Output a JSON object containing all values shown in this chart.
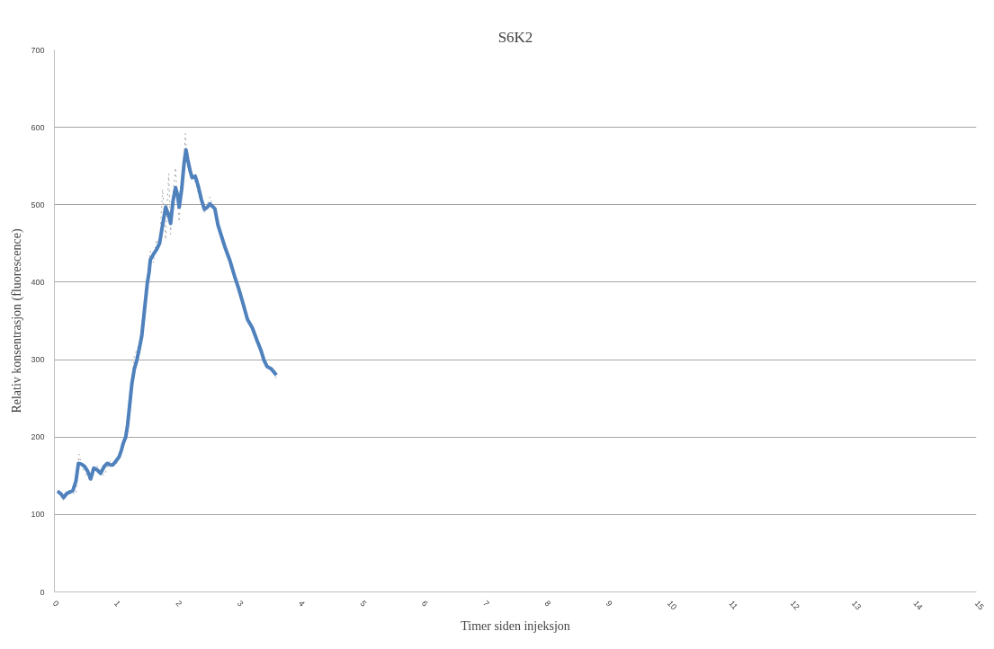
{
  "chart_data": {
    "type": "line",
    "title": "S6K2",
    "xlabel": "Timer siden injeksjon",
    "ylabel": "Relativ konsentrasjon (fluorescence)",
    "xlim": [
      0,
      15
    ],
    "xticks": [
      0,
      1,
      2,
      3,
      4,
      5,
      6,
      7,
      8,
      9,
      10,
      11,
      12,
      13,
      14,
      15
    ],
    "ylim": [
      0,
      700
    ],
    "yticks": [
      0,
      100,
      200,
      300,
      400,
      500,
      600,
      700
    ],
    "grid": "y",
    "series": [
      {
        "color": "#a6a6a6",
        "line_style": "dotted",
        "x": [
          0.05,
          0.15,
          0.25,
          0.35,
          0.4,
          0.45,
          0.59,
          0.69,
          0.81,
          0.91,
          1.0,
          1.12,
          1.22,
          1.3,
          1.38,
          1.5,
          1.56,
          1.61,
          1.66,
          1.71,
          1.76,
          1.81,
          1.86,
          1.89,
          1.93,
          1.97,
          2.0,
          2.03,
          2.07,
          2.11,
          2.13,
          2.17,
          2.21,
          2.29,
          2.34,
          2.44,
          2.53,
          2.61,
          2.72,
          2.85,
          3.0,
          3.14,
          3.29,
          3.41,
          3.53,
          3.61
        ],
        "values": [
          132,
          118,
          130,
          126,
          178,
          160,
          142,
          163,
          150,
          170,
          164,
          190,
          240,
          305,
          320,
          390,
          440,
          425,
          455,
          447,
          520,
          455,
          540,
          462,
          515,
          548,
          505,
          478,
          535,
          560,
          592,
          545,
          548,
          530,
          515,
          490,
          510,
          490,
          452,
          428,
          390,
          352,
          326,
          298,
          290,
          276
        ]
      },
      {
        "color": "#4f81bd",
        "line_style": "solid",
        "x": [
          0.05,
          0.1,
          0.15,
          0.2,
          0.25,
          0.3,
          0.35,
          0.39,
          0.44,
          0.49,
          0.54,
          0.59,
          0.64,
          0.69,
          0.75,
          0.81,
          0.86,
          0.91,
          0.95,
          1.0,
          1.05,
          1.09,
          1.12,
          1.16,
          1.19,
          1.22,
          1.26,
          1.3,
          1.34,
          1.38,
          1.42,
          1.51,
          1.54,
          1.56,
          1.61,
          1.66,
          1.71,
          1.76,
          1.81,
          1.86,
          1.89,
          1.93,
          1.97,
          2.0,
          2.03,
          2.07,
          2.11,
          2.14,
          2.17,
          2.21,
          2.24,
          2.29,
          2.34,
          2.39,
          2.44,
          2.49,
          2.53,
          2.61,
          2.66,
          2.72,
          2.78,
          2.85,
          2.93,
          3.0,
          3.07,
          3.14,
          3.22,
          3.29,
          3.36,
          3.41,
          3.46,
          3.53,
          3.61
        ],
        "values": [
          130,
          127,
          122,
          127,
          129,
          131,
          143,
          166,
          165,
          162,
          156,
          146,
          160,
          158,
          153,
          162,
          166,
          164,
          164,
          169,
          174,
          183,
          192,
          200,
          215,
          238,
          269,
          288,
          299,
          314,
          330,
          398,
          413,
          429,
          436,
          442,
          450,
          474,
          497,
          486,
          476,
          505,
          522,
          514,
          497,
          520,
          554,
          571,
          558,
          543,
          535,
          537,
          524,
          507,
          494,
          497,
          501,
          495,
          474,
          459,
          444,
          429,
          408,
          391,
          372,
          352,
          341,
          326,
          312,
          299,
          291,
          288,
          280
        ]
      }
    ]
  }
}
